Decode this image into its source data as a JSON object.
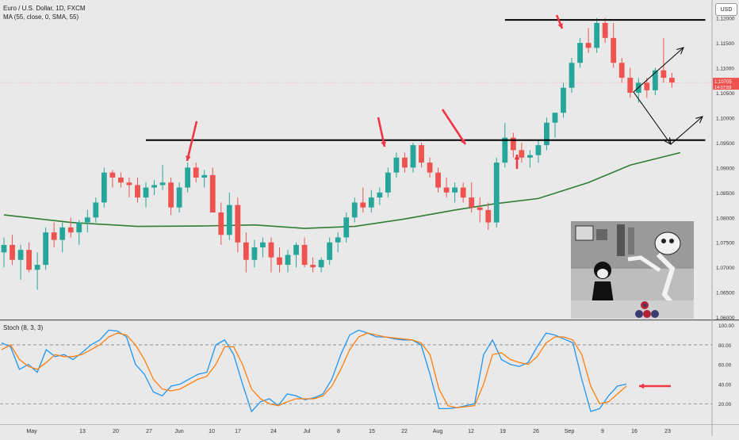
{
  "header": {
    "symbol_line": "Euro / U.S. Dollar, 1D, FXCM",
    "ma_line": "MA (55, close, 0, SMA, 55)",
    "stoch_line": "Stoch (8, 3, 3)",
    "currency_badge": "USD"
  },
  "colors": {
    "background": "#e9e9e9",
    "up": "#26a69a",
    "down": "#ef5350",
    "ma": "#2e7d32",
    "stoch_k": "#2196f3",
    "stoch_d": "#ff7f0e",
    "annotation": "#f23645",
    "level_line": "#000000"
  },
  "chart_data": [
    {
      "type": "candlestick",
      "title": "Euro / U.S. Dollar, 1D, FXCM",
      "x_tick_labels": [
        "May",
        "13",
        "20",
        "27",
        "Jun",
        "10",
        "17",
        "24",
        "Jul",
        "8",
        "15",
        "22",
        "Aug",
        "12",
        "19",
        "26",
        "Sep",
        "9",
        "16",
        "23"
      ],
      "y_tick_labels": [
        "1.12000",
        "1.11500",
        "1.11000",
        "1.10500",
        "1.10000",
        "1.09500",
        "1.09000",
        "1.08500",
        "1.08000",
        "1.07500",
        "1.07000",
        "1.06500",
        "1.06000"
      ],
      "ylim": [
        1.0597,
        1.1236
      ],
      "last_price_label": "1.10705",
      "countdown_label": "14:37:59",
      "candles": [
        [
          1.073,
          1.076,
          1.07,
          1.0745
        ],
        [
          1.0745,
          1.0765,
          1.0705,
          1.0715
        ],
        [
          1.0715,
          1.0745,
          1.0675,
          1.0735
        ],
        [
          1.0735,
          1.075,
          1.069,
          1.0695
        ],
        [
          1.0695,
          1.073,
          1.0655,
          1.0705
        ],
        [
          1.0705,
          1.078,
          1.0695,
          1.077
        ],
        [
          1.077,
          1.079,
          1.074,
          1.0755
        ],
        [
          1.0755,
          1.079,
          1.073,
          1.078
        ],
        [
          1.078,
          1.08,
          1.076,
          1.077
        ],
        [
          1.077,
          1.0795,
          1.0745,
          1.079
        ],
        [
          1.079,
          1.0815,
          1.077,
          1.08
        ],
        [
          1.08,
          1.084,
          1.079,
          1.083
        ],
        [
          1.083,
          1.09,
          1.082,
          1.089
        ],
        [
          1.089,
          1.0895,
          1.086,
          1.088
        ],
        [
          1.088,
          1.089,
          1.086,
          1.087
        ],
        [
          1.087,
          1.088,
          1.084,
          1.0865
        ],
        [
          1.0865,
          1.088,
          1.083,
          1.084
        ],
        [
          1.084,
          1.087,
          1.082,
          1.086
        ],
        [
          1.086,
          1.0875,
          1.0845,
          1.0865
        ],
        [
          1.0865,
          1.0905,
          1.0855,
          1.087
        ],
        [
          1.087,
          1.088,
          1.0805,
          1.082
        ],
        [
          1.082,
          1.087,
          1.081,
          1.086
        ],
        [
          1.086,
          1.091,
          1.085,
          1.09
        ],
        [
          1.09,
          1.091,
          1.087,
          1.088
        ],
        [
          1.088,
          1.0895,
          1.086,
          1.0885
        ],
        [
          1.0885,
          1.09,
          1.081,
          1.081
        ],
        [
          1.081,
          1.083,
          1.0745,
          1.0765
        ],
        [
          1.0765,
          1.085,
          1.0755,
          1.0825
        ],
        [
          1.0825,
          1.084,
          1.073,
          1.075
        ],
        [
          1.075,
          1.077,
          1.069,
          1.0715
        ],
        [
          1.0715,
          1.0755,
          1.07,
          1.074
        ],
        [
          1.074,
          1.076,
          1.072,
          1.075
        ],
        [
          1.075,
          1.076,
          1.069,
          1.072
        ],
        [
          1.072,
          1.074,
          1.069,
          1.0705
        ],
        [
          1.0705,
          1.0735,
          1.069,
          1.0725
        ],
        [
          1.0725,
          1.075,
          1.07,
          1.0745
        ],
        [
          1.0745,
          1.076,
          1.07,
          1.0705
        ],
        [
          1.0705,
          1.072,
          1.069,
          1.07
        ],
        [
          1.07,
          1.072,
          1.069,
          1.0715
        ],
        [
          1.0715,
          1.076,
          1.0705,
          1.075
        ],
        [
          1.075,
          1.077,
          1.073,
          1.076
        ],
        [
          1.076,
          1.081,
          1.075,
          1.08
        ],
        [
          1.08,
          1.084,
          1.079,
          1.083
        ],
        [
          1.083,
          1.086,
          1.081,
          1.082
        ],
        [
          1.082,
          1.0855,
          1.081,
          1.084
        ],
        [
          1.084,
          1.086,
          1.0825,
          1.085
        ],
        [
          1.085,
          1.09,
          1.084,
          1.089
        ],
        [
          1.089,
          1.093,
          1.088,
          1.092
        ],
        [
          1.092,
          1.093,
          1.089,
          1.09
        ],
        [
          1.09,
          1.095,
          1.089,
          1.0945
        ],
        [
          1.0945,
          1.095,
          1.09,
          1.091
        ],
        [
          1.091,
          1.092,
          1.088,
          1.089
        ],
        [
          1.089,
          1.09,
          1.085,
          1.086
        ],
        [
          1.086,
          1.088,
          1.084,
          1.085
        ],
        [
          1.085,
          1.087,
          1.083,
          1.086
        ],
        [
          1.086,
          1.087,
          1.083,
          1.084
        ],
        [
          1.084,
          1.087,
          1.081,
          1.082
        ],
        [
          1.082,
          1.084,
          1.079,
          1.0815
        ],
        [
          1.0815,
          1.083,
          1.0775,
          1.079
        ],
        [
          1.079,
          1.092,
          1.078,
          1.091
        ],
        [
          1.091,
          1.099,
          1.09,
          1.096
        ],
        [
          1.096,
          1.097,
          1.092,
          1.0935
        ],
        [
          1.0935,
          1.095,
          1.091,
          1.092
        ],
        [
          1.092,
          1.0935,
          1.09,
          1.0925
        ],
        [
          1.0925,
          1.0955,
          1.091,
          1.0945
        ],
        [
          1.0945,
          1.1,
          1.0935,
          1.099
        ],
        [
          1.099,
          1.101,
          1.096,
          1.101
        ],
        [
          1.101,
          1.107,
          1.1,
          1.106
        ],
        [
          1.106,
          1.112,
          1.105,
          1.111
        ],
        [
          1.111,
          1.116,
          1.11,
          1.115
        ],
        [
          1.115,
          1.118,
          1.113,
          1.114
        ],
        [
          1.114,
          1.12,
          1.113,
          1.119
        ],
        [
          1.119,
          1.12,
          1.115,
          1.116
        ],
        [
          1.116,
          1.119,
          1.11,
          1.111
        ],
        [
          1.111,
          1.112,
          1.107,
          1.108
        ],
        [
          1.108,
          1.11,
          1.104,
          1.105
        ],
        [
          1.105,
          1.108,
          1.103,
          1.107
        ],
        [
          1.107,
          1.108,
          1.104,
          1.1055
        ],
        [
          1.1055,
          1.11,
          1.1045,
          1.1095
        ],
        [
          1.1095,
          1.116,
          1.107,
          1.108
        ],
        [
          1.108,
          1.109,
          1.106,
          1.10705
        ]
      ],
      "ma_series": {
        "name": "MA (55, close, 0, SMA, 55)",
        "x_index": [
          0,
          8,
          16,
          24,
          30,
          36,
          42,
          48,
          54,
          59,
          64,
          70,
          75,
          81
        ],
        "values": [
          1.0805,
          1.079,
          1.0782,
          1.0783,
          1.0785,
          1.0778,
          1.0782,
          1.0797,
          1.0815,
          1.0828,
          1.0838,
          1.087,
          1.0905,
          1.093
        ]
      },
      "horizontal_levels": [
        {
          "value": 1.0955,
          "x_range": [
            17,
            84
          ]
        },
        {
          "value": 1.1196,
          "x_range": [
            60,
            84
          ]
        }
      ]
    },
    {
      "type": "line",
      "title": "Stoch (8, 3, 3)",
      "y_tick_labels": [
        "100.00",
        "80.00",
        "60.00",
        "40.00",
        "20.00"
      ],
      "ylim": [
        0,
        105
      ],
      "reference_levels": [
        80,
        20
      ],
      "series": [
        {
          "name": "%K",
          "values": [
            82,
            78,
            55,
            60,
            52,
            75,
            68,
            70,
            65,
            72,
            80,
            85,
            95,
            94,
            88,
            60,
            50,
            32,
            28,
            38,
            40,
            45,
            50,
            52,
            80,
            85,
            70,
            40,
            12,
            22,
            25,
            18,
            30,
            28,
            24,
            26,
            30,
            45,
            70,
            90,
            95,
            92,
            88,
            88,
            86,
            85,
            85,
            80,
            50,
            15,
            15,
            16,
            18,
            20,
            70,
            85,
            65,
            60,
            58,
            62,
            78,
            92,
            90,
            86,
            82,
            45,
            12,
            15,
            28,
            38,
            40
          ]
        },
        {
          "name": "%D",
          "values": [
            75,
            80,
            65,
            58,
            55,
            62,
            70,
            68,
            68,
            70,
            75,
            80,
            88,
            92,
            90,
            80,
            65,
            45,
            35,
            33,
            35,
            40,
            45,
            48,
            60,
            78,
            78,
            60,
            35,
            25,
            20,
            18,
            22,
            25,
            25,
            25,
            28,
            38,
            55,
            75,
            88,
            92,
            90,
            88,
            87,
            86,
            85,
            82,
            70,
            35,
            18,
            16,
            17,
            18,
            40,
            70,
            72,
            65,
            62,
            60,
            68,
            82,
            88,
            88,
            85,
            70,
            38,
            20,
            22,
            30,
            38
          ]
        }
      ]
    }
  ]
}
